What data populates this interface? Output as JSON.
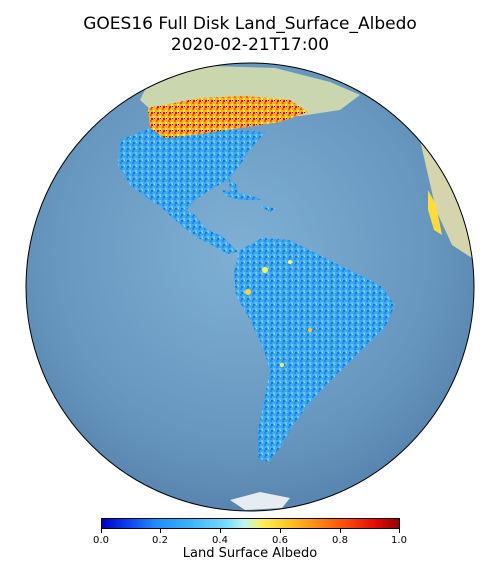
{
  "title": {
    "line1": "GOES16 Full Disk Land_Surface_Albedo",
    "line2": "2020-02-21T17:00"
  },
  "colorbar": {
    "label": "Land  Surface  Albedo",
    "ticks": [
      "0.0",
      "0.2",
      "0.4",
      "0.6",
      "0.8",
      "1.0"
    ],
    "range": [
      0.0,
      1.0
    ],
    "colormap": "jet-like (blue to red)"
  },
  "map": {
    "projection": "geostationary full disk",
    "ocean_color": "#6b9dc3",
    "land_background_color": "#cfd8b0",
    "variable": "Land Surface Albedo"
  }
}
